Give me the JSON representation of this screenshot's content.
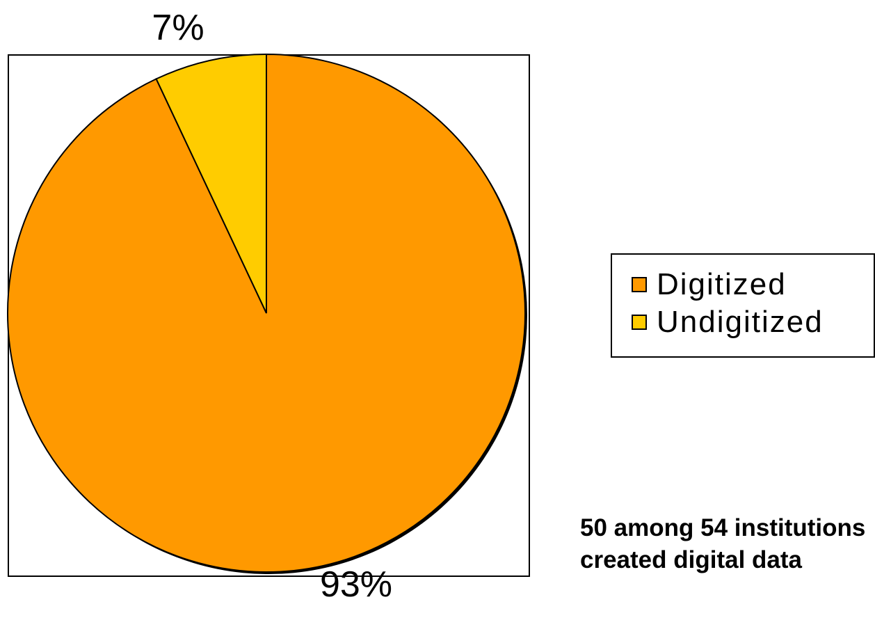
{
  "chart_data": {
    "type": "pie",
    "categories": [
      "Digitized",
      "Undigitized"
    ],
    "values": [
      93,
      7
    ],
    "data_labels": [
      "93%",
      "7%"
    ],
    "colors": [
      "#FF9900",
      "#FFCC00"
    ],
    "legend": {
      "placement": "right",
      "entries": [
        "Digitized",
        "Undigitized"
      ]
    },
    "annotation": {
      "lines": [
        "50 among 54 institutions",
        "created digital data"
      ]
    }
  }
}
